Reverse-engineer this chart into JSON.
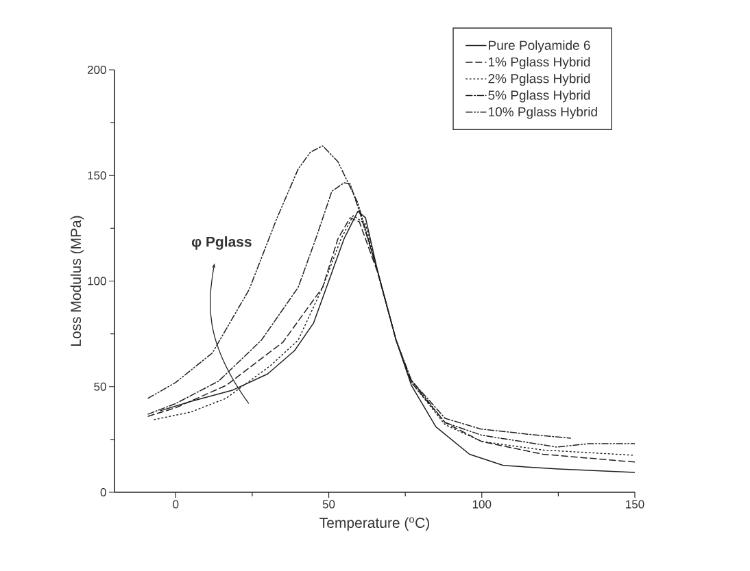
{
  "chart_data": {
    "type": "line",
    "xlabel": "Temperature ($^{o}$C)",
    "ylabel": "Loss Modulus (MPa)",
    "xlim": [
      -20,
      150
    ],
    "ylim": [
      0,
      200
    ],
    "xticks": [
      0,
      50,
      100,
      150
    ],
    "yticks": [
      0,
      50,
      100,
      150,
      200
    ],
    "legend": "top right",
    "marker": "none",
    "annotations": [
      "φ Pglass"
    ],
    "series": [
      {
        "name": "Pure Polyamide 6",
        "color": "#1e1e1e",
        "line_style": "solid",
        "x": [
          -5,
          5,
          18.7,
          30,
          38.8,
          45,
          50,
          55,
          59.5,
          62,
          66,
          72,
          77,
          85,
          96,
          107,
          125,
          150
        ],
        "values": [
          38.6,
          43,
          48.4,
          56,
          67,
          80,
          100,
          120,
          133,
          130,
          104.5,
          72,
          50.6,
          31,
          18,
          12.7,
          11,
          9.4
        ]
      },
      {
        "name": "1% Pglass Hybrid",
        "color": "#1e1e1e",
        "line_style": "dashed",
        "x": [
          -9,
          0,
          16.5,
          35,
          48,
          53,
          57,
          60,
          66,
          72,
          77,
          88,
          100,
          120,
          150
        ],
        "values": [
          36,
          40,
          50.6,
          71,
          97,
          120,
          130,
          128,
          104,
          72,
          52,
          33,
          24,
          18,
          14.3
        ]
      },
      {
        "name": "2% Pglass Hybrid",
        "color": "#1e1e1e",
        "line_style": "dotted",
        "x": [
          -7,
          5,
          16.5,
          31,
          40,
          48,
          54,
          58,
          62,
          66,
          72,
          77,
          88,
          100,
          120,
          150
        ],
        "values": [
          34.4,
          38,
          44.5,
          60,
          72,
          97,
          120,
          131,
          127,
          104,
          72,
          52,
          32,
          24,
          20,
          17.5
        ]
      },
      {
        "name": "5% Pglass Hybrid",
        "color": "#1e1e1e",
        "line_style": "dashdotted",
        "x": [
          -9,
          0,
          14,
          28,
          40,
          46,
          51,
          55,
          57,
          60,
          66,
          72,
          77,
          88,
          99.5,
          115,
          129
        ],
        "values": [
          37,
          42,
          52.6,
          72,
          97,
          121,
          142.5,
          146.5,
          146,
          133,
          104.5,
          72,
          53,
          35,
          30,
          27.5,
          25.6
        ]
      },
      {
        "name": "10% Pglass Hybrid",
        "color": "#1e1e1e",
        "line_style": "dashdotdotted",
        "x": [
          -9,
          0,
          12,
          24,
          33,
          40,
          44,
          48,
          53,
          59.5,
          66,
          72,
          77,
          88,
          100,
          124.5,
          135,
          150
        ],
        "values": [
          44.5,
          52,
          66,
          96,
          129.5,
          153,
          161,
          164,
          156.5,
          137,
          104.5,
          72,
          53,
          33,
          27,
          21.4,
          23,
          23
        ]
      }
    ]
  }
}
